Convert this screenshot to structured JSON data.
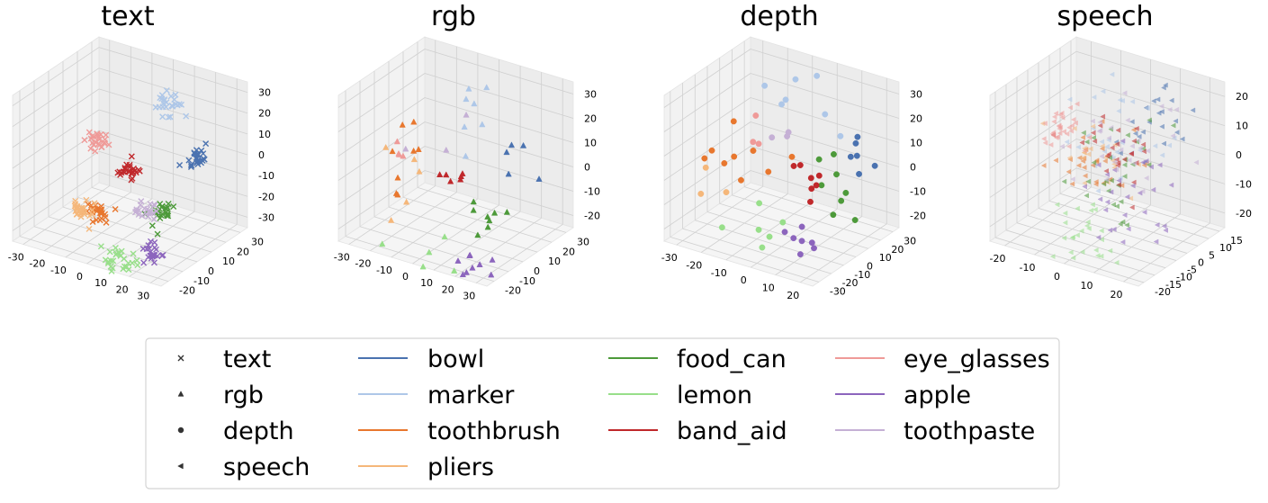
{
  "legend": {
    "modalities": [
      {
        "label": "text",
        "marker": "x"
      },
      {
        "label": "rgb",
        "marker": "triangle"
      },
      {
        "label": "depth",
        "marker": "circle"
      },
      {
        "label": "speech",
        "marker": "left-triangle"
      }
    ],
    "classes": [
      {
        "label": "bowl",
        "color": "#4a72b0"
      },
      {
        "label": "marker",
        "color": "#aec7e8"
      },
      {
        "label": "toothbrush",
        "color": "#e8772e"
      },
      {
        "label": "pliers",
        "color": "#f5b77a"
      },
      {
        "label": "food_can",
        "color": "#4d9a3a"
      },
      {
        "label": "lemon",
        "color": "#98df8a"
      },
      {
        "label": "band_aid",
        "color": "#c0282b"
      },
      {
        "label": "eye_glasses",
        "color": "#ef9a98"
      },
      {
        "label": "apple",
        "color": "#8c65bd"
      },
      {
        "label": "toothpaste",
        "color": "#c5b0d5"
      }
    ]
  },
  "chart_data": [
    {
      "type": "scatter",
      "title": "text",
      "marker": "x",
      "projection": "3d",
      "grid": true,
      "x_ticks": [
        "-30",
        "-20",
        "-10",
        "0",
        "10",
        "20",
        "30"
      ],
      "y_ticks": [
        "-20",
        "-10",
        "0",
        "10",
        "20",
        "30"
      ],
      "z_ticks": [
        "-30",
        "-20",
        "-10",
        "0",
        "10",
        "20",
        "30"
      ],
      "xlim": [
        -34,
        34
      ],
      "ylim": [
        -24,
        34
      ],
      "zlim": [
        -34,
        34
      ],
      "series": [
        {
          "name": "bowl",
          "center": [
            28,
            10,
            8
          ],
          "spread": 2.5,
          "count": 26
        },
        {
          "name": "marker",
          "center": [
            0,
            30,
            15
          ],
          "spread": 3,
          "count": 26
        },
        {
          "name": "toothbrush",
          "center": [
            -4,
            -8,
            -18
          ],
          "spread": 2.5,
          "count": 26
        },
        {
          "name": "pliers",
          "center": [
            -16,
            -4,
            -24
          ],
          "spread": 2.5,
          "count": 26
        },
        {
          "name": "food_can",
          "center": [
            26,
            -12,
            -8
          ],
          "spread": 2.5,
          "count": 26
        },
        {
          "name": "lemon",
          "center": [
            12,
            -20,
            -30
          ],
          "spread": 3,
          "count": 26
        },
        {
          "name": "band_aid",
          "center": [
            0,
            4,
            -4
          ],
          "spread": 2,
          "count": 26
        },
        {
          "name": "eye_glasses",
          "center": [
            -22,
            14,
            -2
          ],
          "spread": 2.5,
          "count": 26
        },
        {
          "name": "apple",
          "center": [
            26,
            -18,
            -24
          ],
          "spread": 2,
          "count": 22
        },
        {
          "name": "toothpaste",
          "center": [
            10,
            0,
            -18
          ],
          "spread": 2.5,
          "count": 22
        }
      ]
    },
    {
      "type": "scatter",
      "title": "rgb",
      "marker": "triangle",
      "projection": "3d",
      "grid": true,
      "x_ticks": [
        "-30",
        "-20",
        "-10",
        "0",
        "10",
        "20",
        "30"
      ],
      "y_ticks": [
        "-20",
        "-10",
        "0",
        "10",
        "20",
        "30"
      ],
      "z_ticks": [
        "-20",
        "-10",
        "0",
        "10",
        "20",
        "30"
      ],
      "xlim": [
        -34,
        34
      ],
      "ylim": [
        -24,
        34
      ],
      "zlim": [
        -26,
        34
      ],
      "series": [
        {
          "name": "bowl",
          "center": [
            26,
            10,
            8
          ],
          "spread": 4,
          "count": 5
        },
        {
          "name": "marker",
          "center": [
            -6,
            28,
            14
          ],
          "spread": 7,
          "count": 7
        },
        {
          "name": "toothbrush",
          "center": [
            -16,
            2,
            2
          ],
          "spread": 10,
          "count": 8
        },
        {
          "name": "pliers",
          "center": [
            -24,
            -4,
            -6
          ],
          "spread": 6,
          "count": 5
        },
        {
          "name": "food_can",
          "center": [
            26,
            -8,
            -6
          ],
          "spread": 5,
          "count": 8
        },
        {
          "name": "lemon",
          "center": [
            4,
            -22,
            -22
          ],
          "spread": 6,
          "count": 5
        },
        {
          "name": "band_aid",
          "center": [
            -2,
            6,
            -2
          ],
          "spread": 4,
          "count": 6
        },
        {
          "name": "eye_glasses",
          "center": [
            -28,
            12,
            -4
          ],
          "spread": 5,
          "count": 4
        },
        {
          "name": "apple",
          "center": [
            24,
            -18,
            -20
          ],
          "spread": 5,
          "count": 9
        },
        {
          "name": "toothpaste",
          "center": [
            -12,
            16,
            2
          ],
          "spread": 6,
          "count": 3
        }
      ]
    },
    {
      "type": "scatter",
      "title": "depth",
      "marker": "circle",
      "projection": "3d",
      "grid": true,
      "x_ticks": [
        "-30",
        "-20",
        "-10",
        "0",
        "10",
        "20"
      ],
      "y_ticks": [
        "-30",
        "-20",
        "-10",
        "0",
        "10",
        "20",
        "30"
      ],
      "z_ticks": [
        "-20",
        "-10",
        "0",
        "10",
        "20",
        "30"
      ],
      "xlim": [
        -34,
        26
      ],
      "ylim": [
        -34,
        34
      ],
      "zlim": [
        -26,
        34
      ],
      "series": [
        {
          "name": "bowl",
          "center": [
            20,
            12,
            8
          ],
          "spread": 4,
          "count": 6
        },
        {
          "name": "marker",
          "center": [
            -8,
            28,
            18
          ],
          "spread": 8,
          "count": 7
        },
        {
          "name": "toothbrush",
          "center": [
            -24,
            2,
            -2
          ],
          "spread": 8,
          "count": 9
        },
        {
          "name": "pliers",
          "center": [
            -28,
            -4,
            -8
          ],
          "spread": 4,
          "count": 3
        },
        {
          "name": "food_can",
          "center": [
            18,
            -4,
            -2
          ],
          "spread": 5,
          "count": 8
        },
        {
          "name": "lemon",
          "center": [
            -2,
            -20,
            -16
          ],
          "spread": 7,
          "count": 6
        },
        {
          "name": "band_aid",
          "center": [
            4,
            4,
            -2
          ],
          "spread": 5,
          "count": 7
        },
        {
          "name": "eye_glasses",
          "center": [
            -26,
            16,
            6
          ],
          "spread": 5,
          "count": 3
        },
        {
          "name": "apple",
          "center": [
            18,
            -22,
            -14
          ],
          "spread": 4,
          "count": 7
        },
        {
          "name": "toothpaste",
          "center": [
            -12,
            10,
            4
          ],
          "spread": 6,
          "count": 3
        }
      ]
    },
    {
      "type": "scatter",
      "title": "speech",
      "marker": "left-triangle",
      "projection": "3d",
      "grid": true,
      "x_ticks": [
        "-20",
        "-10",
        "0",
        "10",
        "20"
      ],
      "y_ticks": [
        "-20",
        "-15",
        "-10",
        "-5",
        "0",
        "5",
        "10",
        "15"
      ],
      "z_ticks": [
        "-20",
        "-10",
        "0",
        "10",
        "20"
      ],
      "xlim": [
        -24,
        24
      ],
      "ylim": [
        -22,
        18
      ],
      "zlim": [
        -24,
        24
      ],
      "series": [
        {
          "name": "bowl",
          "center": [
            6,
            10,
            12
          ],
          "spread": 5,
          "count": 22
        },
        {
          "name": "marker",
          "center": [
            -2,
            6,
            8
          ],
          "spread": 8,
          "count": 30
        },
        {
          "name": "toothbrush",
          "center": [
            -4,
            -2,
            -4
          ],
          "spread": 6,
          "count": 26
        },
        {
          "name": "pliers",
          "center": [
            -2,
            -4,
            -2
          ],
          "spread": 7,
          "count": 22
        },
        {
          "name": "food_can",
          "center": [
            2,
            -2,
            -2
          ],
          "spread": 7,
          "count": 30
        },
        {
          "name": "lemon",
          "center": [
            0,
            -12,
            -20
          ],
          "spread": 5,
          "count": 26
        },
        {
          "name": "band_aid",
          "center": [
            2,
            0,
            0
          ],
          "spread": 6,
          "count": 26
        },
        {
          "name": "eye_glasses",
          "center": [
            -18,
            4,
            2
          ],
          "spread": 3,
          "count": 32
        },
        {
          "name": "apple",
          "center": [
            10,
            -6,
            -8
          ],
          "spread": 8,
          "count": 30
        },
        {
          "name": "toothpaste",
          "center": [
            4,
            2,
            4
          ],
          "spread": 8,
          "count": 28
        }
      ]
    }
  ]
}
